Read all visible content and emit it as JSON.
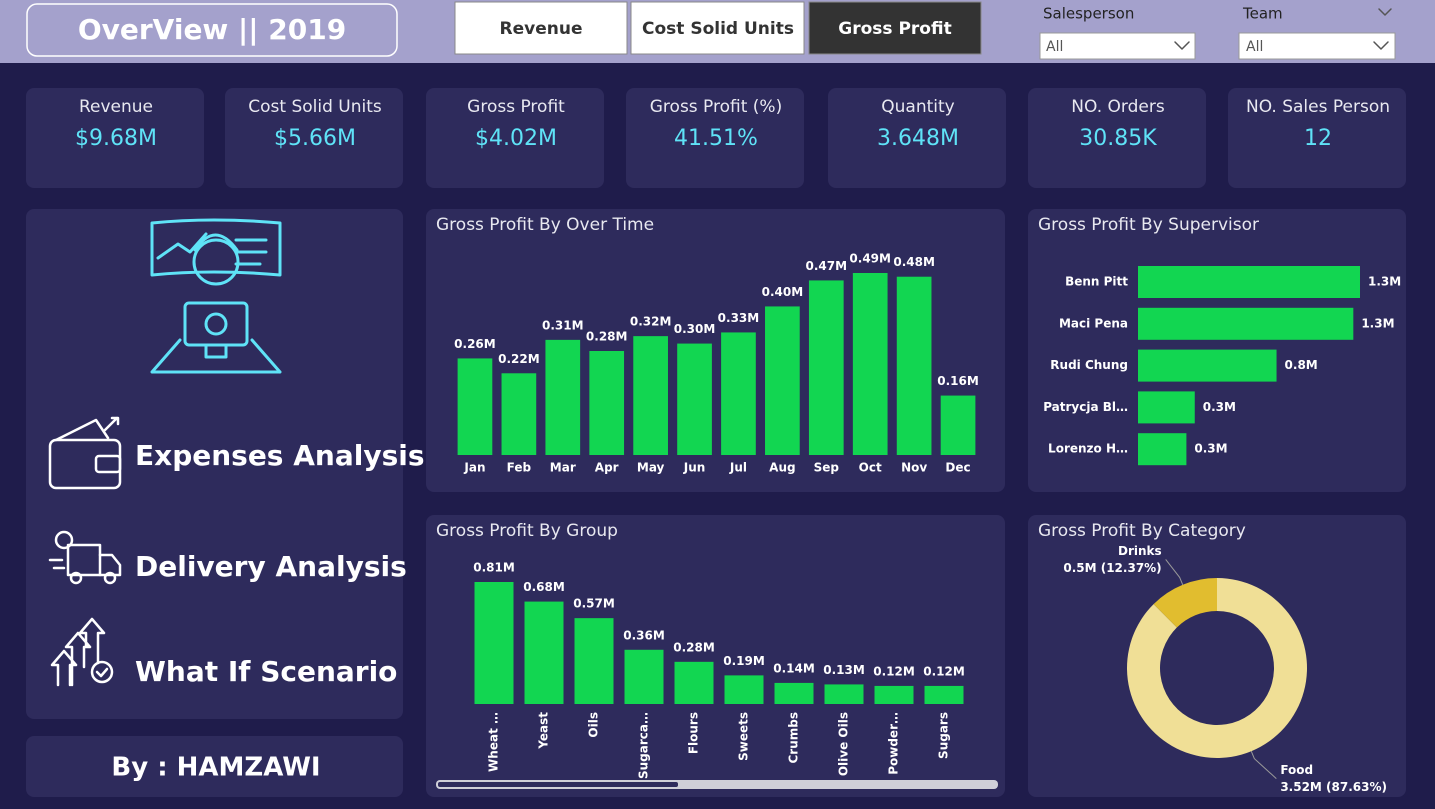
{
  "header": {
    "title": "OverView || 2019",
    "tabs": [
      "Revenue",
      "Cost Solid Units",
      "Gross Profit"
    ],
    "filters": [
      {
        "label": "Salesperson",
        "value": "All"
      },
      {
        "label": "Team",
        "value": "All"
      }
    ]
  },
  "kpis": [
    {
      "label": "Revenue",
      "value": "$9.68M"
    },
    {
      "label": "Cost Solid Units",
      "value": "$5.66M"
    },
    {
      "label": "Gross Profit",
      "value": "$4.02M"
    },
    {
      "label": "Gross Profit (%)",
      "value": "41.51%"
    },
    {
      "label": "Quantity",
      "value": "3.648M"
    },
    {
      "label": "NO. Orders",
      "value": "30.85K"
    },
    {
      "label": "NO. Sales Person",
      "value": "12"
    }
  ],
  "nav": {
    "items": [
      "Expenses Analysis",
      "Delivery Analysis",
      "What If Scenario"
    ]
  },
  "footer": {
    "author": "By : HAMZAWI"
  },
  "chart_data": [
    {
      "type": "bar",
      "title": "Gross Profit By Over Time",
      "color": "#12d651",
      "categories": [
        "Jan",
        "Feb",
        "Mar",
        "Apr",
        "May",
        "Jun",
        "Jul",
        "Aug",
        "Sep",
        "Oct",
        "Nov",
        "Dec"
      ],
      "values": [
        0.26,
        0.22,
        0.31,
        0.28,
        0.32,
        0.3,
        0.33,
        0.4,
        0.47,
        0.49,
        0.48,
        0.16
      ],
      "value_labels": [
        "0.26M",
        "0.22M",
        "0.31M",
        "0.28M",
        "0.32M",
        "0.30M",
        "0.33M",
        "0.40M",
        "0.47M",
        "0.49M",
        "0.48M",
        "0.16M"
      ]
    },
    {
      "type": "hbar",
      "title": "Gross Profit By Supervisor",
      "color": "#12d651",
      "categories": [
        "Benn Pitt",
        "Maci Pena",
        "Rudi Chung",
        "Patrycja Bl…",
        "Lorenzo H…"
      ],
      "values": [
        1.33,
        1.29,
        0.83,
        0.34,
        0.29
      ],
      "value_labels": [
        "1.3M",
        "1.3M",
        "0.8M",
        "0.3M",
        "0.3M"
      ]
    },
    {
      "type": "bar",
      "title": "Gross Profit By Group",
      "color": "#12d651",
      "rotated_labels": true,
      "categories": [
        "Wheat …",
        "Yeast",
        "Oils",
        "Sugarca…",
        "Flours",
        "Sweets",
        "Crumbs",
        "Olive Oils",
        "Powder…",
        "Sugars"
      ],
      "values": [
        0.81,
        0.68,
        0.57,
        0.36,
        0.28,
        0.19,
        0.14,
        0.13,
        0.12,
        0.12
      ],
      "value_labels": [
        "0.81M",
        "0.68M",
        "0.57M",
        "0.36M",
        "0.28M",
        "0.19M",
        "0.14M",
        "0.13M",
        "0.12M",
        "0.12M"
      ]
    },
    {
      "type": "donut",
      "title": "Gross Profit By Category",
      "categories": [
        "Food",
        "Drinks"
      ],
      "values": [
        3.52,
        0.5
      ],
      "value_labels": [
        "3.52M (87.63%)",
        "0.5M (12.37%)"
      ],
      "colors": [
        "#f0df96",
        "#e1bd2f"
      ]
    }
  ]
}
